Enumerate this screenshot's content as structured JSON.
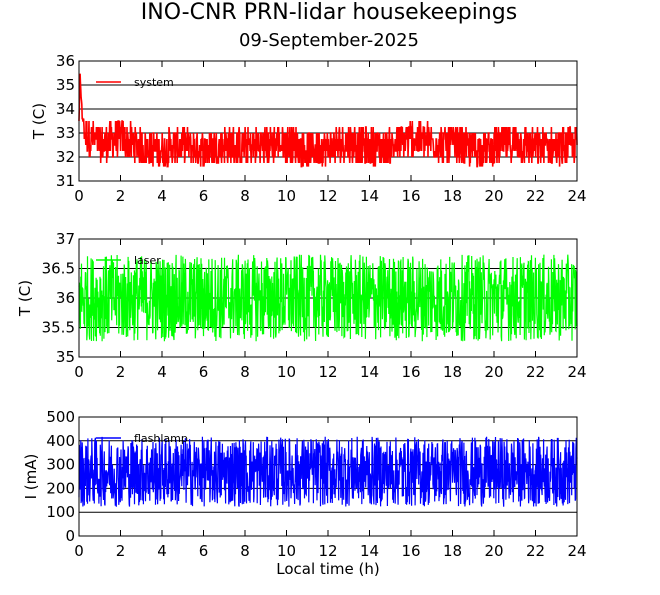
{
  "figure": {
    "title": "INO-CNR PRN-lidar housekeepings",
    "subtitle": "09-September-2025",
    "xlabel": "Local time (h)"
  },
  "colors": {
    "system": "#ff0000",
    "laser": "#00ff00",
    "flashlamp": "#0000ff"
  },
  "chart_data": [
    {
      "type": "line",
      "title": "",
      "xlabel": "",
      "ylabel": "T (C)",
      "xlim": [
        0,
        24
      ],
      "ylim": [
        31,
        36
      ],
      "x_ticks": [
        0,
        2,
        4,
        6,
        8,
        10,
        12,
        14,
        16,
        18,
        20,
        22,
        24
      ],
      "y_ticks": [
        31,
        32,
        33,
        34,
        35,
        36
      ],
      "grid": true,
      "legend": "top-left",
      "series": [
        {
          "name": "system",
          "color": "#ff0000",
          "style": "dense noisy trace",
          "x": [
            0,
            0.05,
            0.1,
            0.2,
            0.3,
            1.0,
            2.0,
            3.0,
            4.0,
            5.0,
            6.0,
            7.0,
            8.0,
            9.0,
            10.0,
            11.0,
            12.0,
            13.0,
            14.0,
            15.0,
            16.0,
            17.0,
            18.0,
            19.0,
            20.0,
            21.0,
            22.0,
            23.0,
            24.0
          ],
          "y": [
            33.5,
            35.5,
            34.5,
            33.7,
            33.0,
            32.5,
            32.8,
            32.4,
            32.3,
            32.5,
            32.3,
            32.5,
            32.4,
            32.5,
            32.6,
            32.3,
            32.4,
            32.6,
            32.4,
            32.4,
            32.8,
            32.6,
            32.5,
            32.3,
            32.4,
            32.6,
            32.4,
            32.4,
            32.5
          ],
          "band_min": 31.6,
          "band_max": 33.6
        }
      ]
    },
    {
      "type": "line",
      "title": "",
      "xlabel": "",
      "ylabel": "T (C)",
      "xlim": [
        0,
        24
      ],
      "ylim": [
        35,
        37
      ],
      "x_ticks": [
        0,
        2,
        4,
        6,
        8,
        10,
        12,
        14,
        16,
        18,
        20,
        22,
        24
      ],
      "y_ticks": [
        35,
        35.5,
        36,
        36.5,
        37
      ],
      "y_tick_labels": [
        "35",
        "35.5",
        "36",
        "36.5",
        "37"
      ],
      "grid": true,
      "legend": "top-left",
      "series": [
        {
          "name": "laser",
          "color": "#00ff00",
          "style": "dense noisy trace",
          "x": [
            0,
            2,
            4,
            6,
            8,
            10,
            12,
            14,
            16,
            18,
            20,
            22,
            24
          ],
          "y": [
            36.0,
            36.0,
            36.0,
            36.0,
            36.0,
            36.0,
            36.0,
            36.0,
            36.0,
            36.0,
            36.0,
            36.0,
            36.0
          ],
          "band_min": 35.25,
          "band_max": 36.8
        }
      ]
    },
    {
      "type": "line",
      "title": "",
      "xlabel": "Local time (h)",
      "ylabel": "I (mA)",
      "xlim": [
        0,
        24
      ],
      "ylim": [
        0,
        500
      ],
      "x_ticks": [
        0,
        2,
        4,
        6,
        8,
        10,
        12,
        14,
        16,
        18,
        20,
        22,
        24
      ],
      "y_ticks": [
        0,
        100,
        200,
        300,
        400,
        500
      ],
      "grid": true,
      "legend": "top-left",
      "series": [
        {
          "name": "flashlamp",
          "color": "#0000ff",
          "style": "dense noisy trace",
          "x": [
            0,
            2,
            4,
            6,
            8,
            10,
            12,
            14,
            16,
            18,
            20,
            22,
            24
          ],
          "y": [
            270,
            270,
            270,
            270,
            270,
            270,
            270,
            270,
            270,
            270,
            270,
            270,
            270
          ],
          "band_min": 110,
          "band_max": 420
        }
      ]
    }
  ]
}
